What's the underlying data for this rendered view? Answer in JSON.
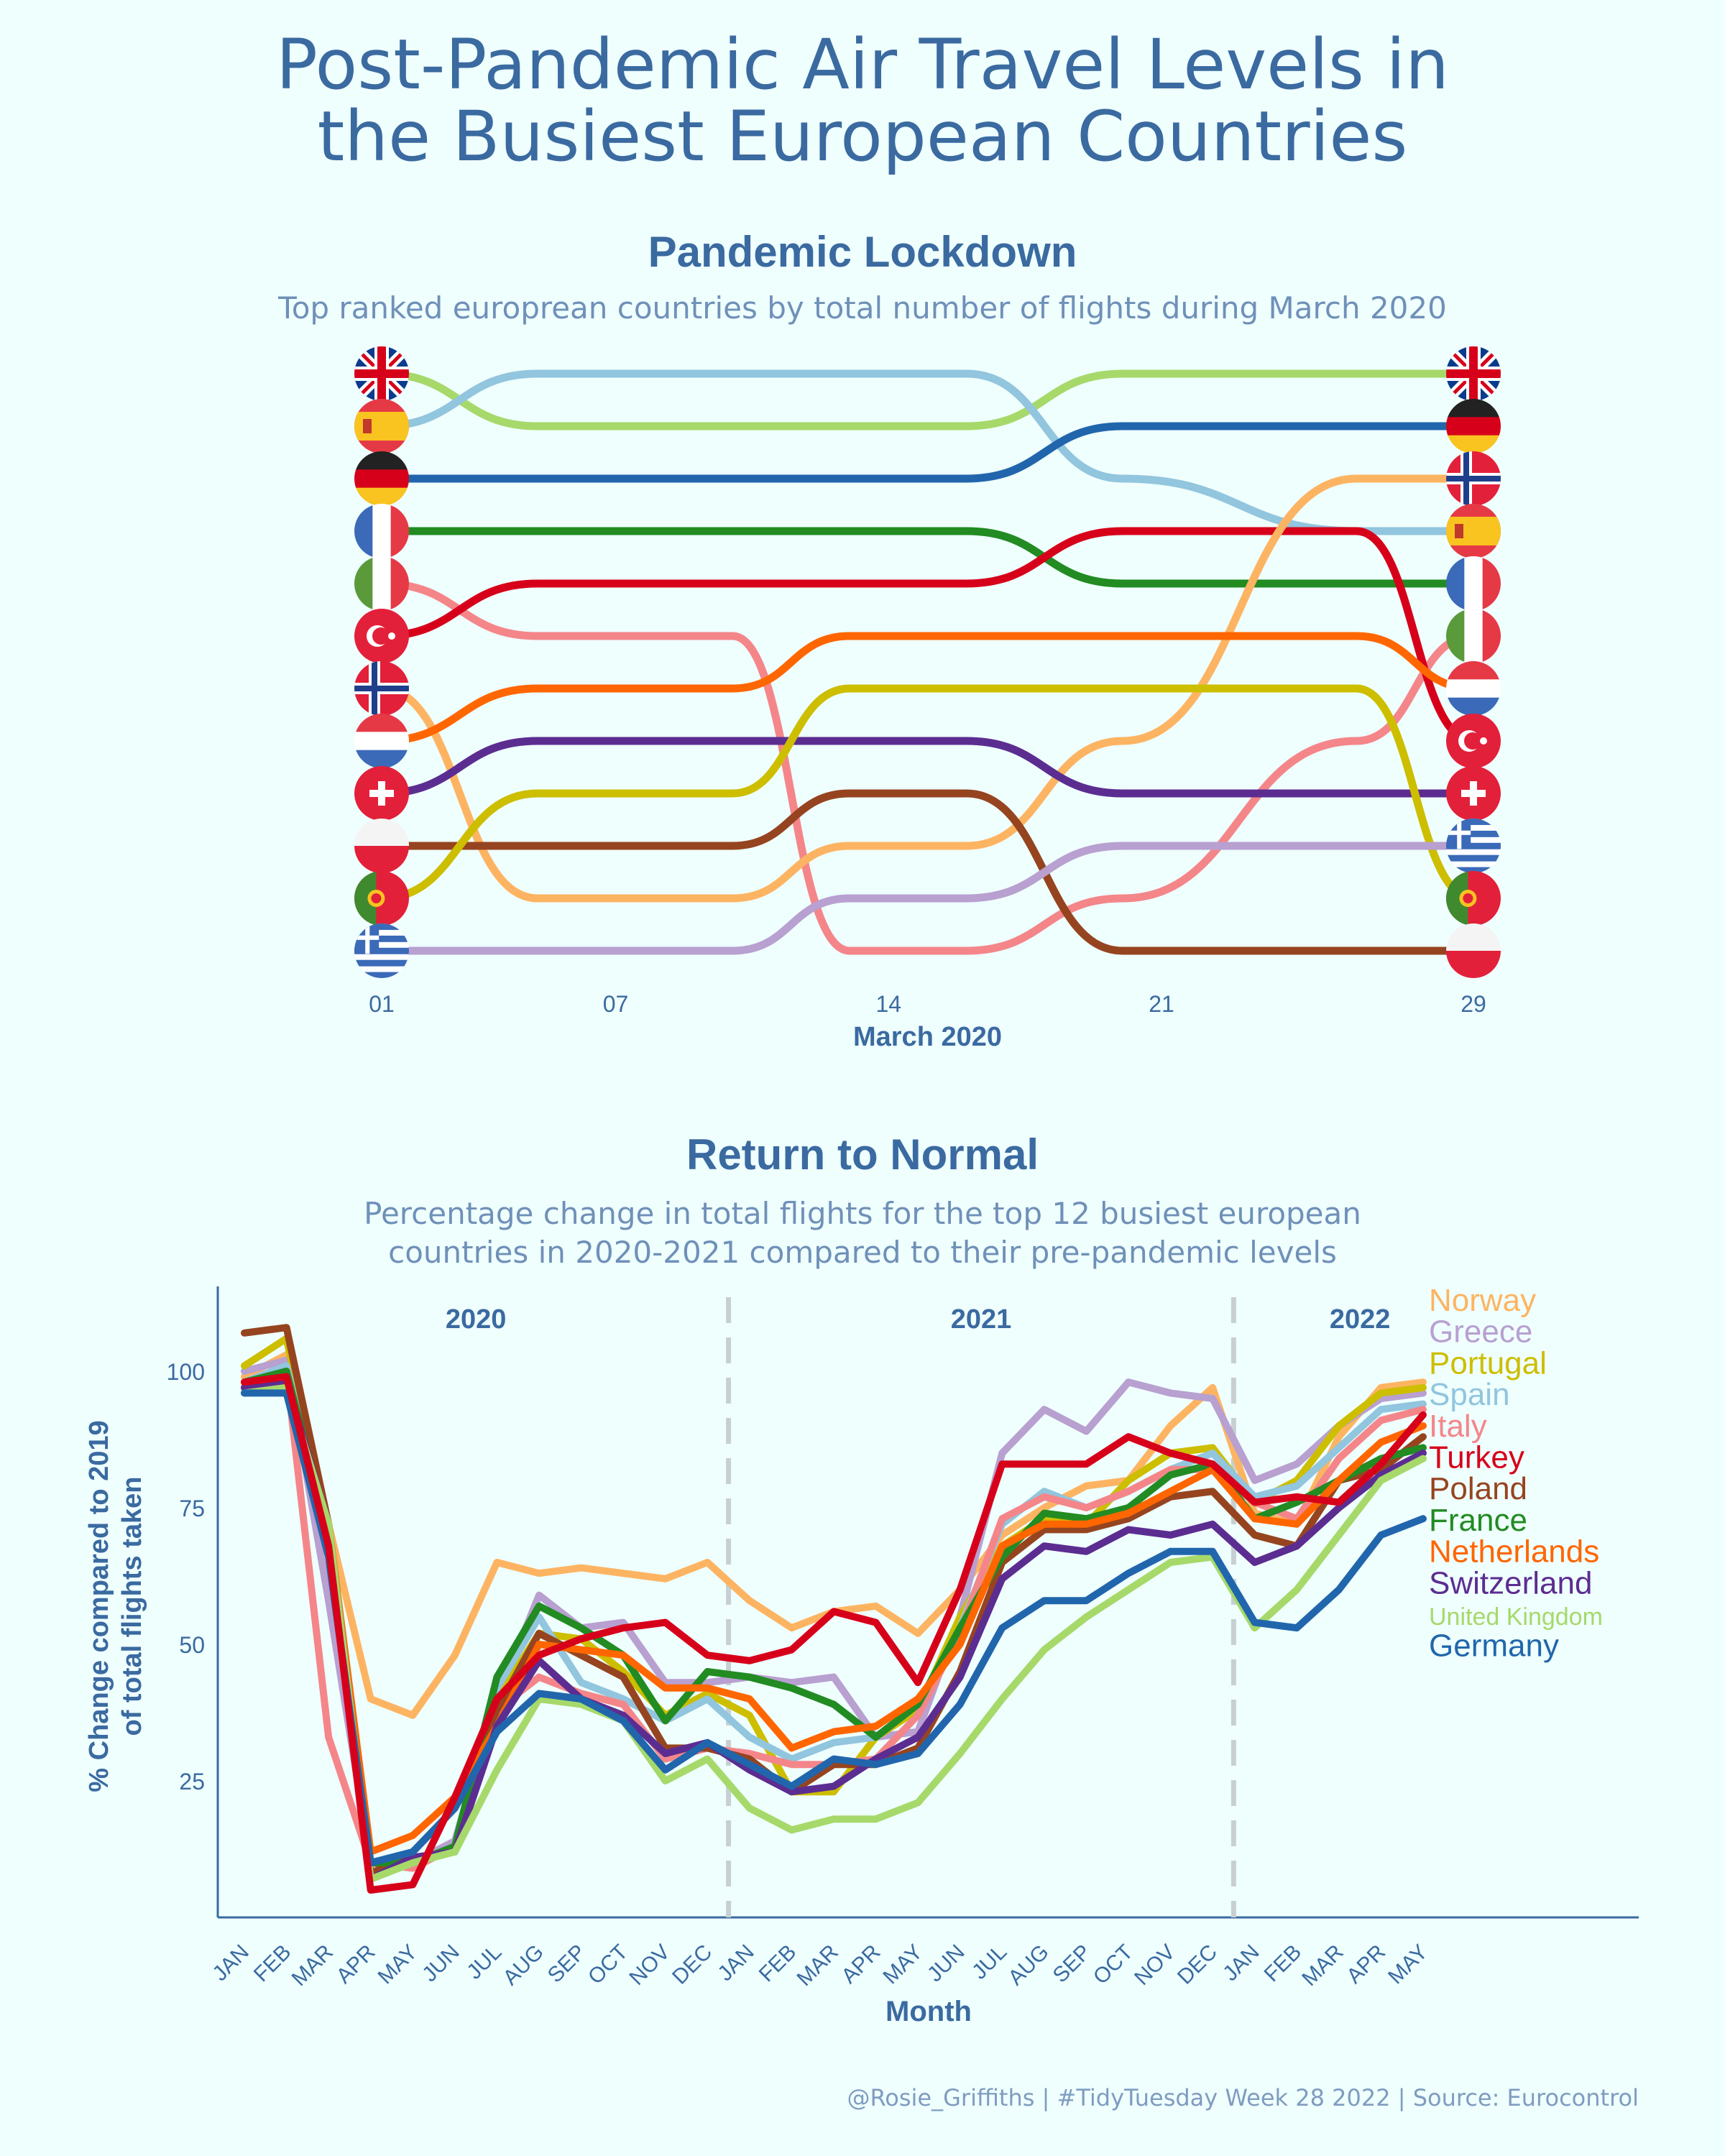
{
  "main_title_line1": "Post-Pandemic Air Travel Levels in",
  "main_title_line2": "the Busiest European Countries",
  "caption": "@Rosie_Griffiths | #TidyTuesday Week 28 2022 | Source: Eurocontrol",
  "colors": {
    "United Kingdom": "#a6d96a",
    "Spain": "#92c5de",
    "Germany": "#2166ac",
    "France": "#228b22",
    "Italy": "#f4868a",
    "Turkey": "#d7001a",
    "Norway": "#fdb462",
    "Netherlands": "#ff6600",
    "Switzerland": "#5c2d91",
    "Poland": "#964420",
    "Portugal": "#cdbe00",
    "Greece": "#b8a0d0"
  },
  "chart_data": [
    {
      "type": "line",
      "chart_kind": "bump",
      "title": "Pandemic Lockdown",
      "subtitle": "Top ranked europrean countries by total number of flights during March 2020",
      "xlabel": "March 2020",
      "x_ticks": [
        "01",
        "07",
        "14",
        "21",
        "29"
      ],
      "rank_checkpoints": [
        1,
        5,
        10,
        13,
        16,
        20,
        26,
        29
      ],
      "series": [
        {
          "name": "United Kingdom",
          "ranks": [
            1,
            2,
            2,
            2,
            2,
            1,
            1,
            1
          ]
        },
        {
          "name": "Spain",
          "ranks": [
            2,
            1,
            1,
            1,
            1,
            3,
            4,
            4
          ]
        },
        {
          "name": "Germany",
          "ranks": [
            3,
            3,
            3,
            3,
            3,
            2,
            2,
            2
          ]
        },
        {
          "name": "France",
          "ranks": [
            4,
            4,
            4,
            4,
            4,
            5,
            5,
            5
          ]
        },
        {
          "name": "Italy",
          "ranks": [
            5,
            6,
            6,
            12,
            12,
            11,
            8,
            6
          ]
        },
        {
          "name": "Turkey",
          "ranks": [
            6,
            5,
            5,
            5,
            5,
            4,
            4,
            8
          ]
        },
        {
          "name": "Norway",
          "ranks": [
            7,
            11,
            11,
            10,
            10,
            8,
            3,
            3
          ]
        },
        {
          "name": "Netherlands",
          "ranks": [
            8,
            7,
            7,
            6,
            6,
            6,
            6,
            7
          ]
        },
        {
          "name": "Switzerland",
          "ranks": [
            9,
            8,
            8,
            8,
            8,
            9,
            9,
            9
          ]
        },
        {
          "name": "Poland",
          "ranks": [
            10,
            10,
            10,
            9,
            9,
            12,
            12,
            12
          ]
        },
        {
          "name": "Portugal",
          "ranks": [
            11,
            9,
            9,
            7,
            7,
            7,
            7,
            11
          ]
        },
        {
          "name": "Greece",
          "ranks": [
            12,
            12,
            12,
            11,
            11,
            10,
            10,
            10
          ]
        }
      ],
      "left_order": [
        "United Kingdom",
        "Spain",
        "Germany",
        "France",
        "Italy",
        "Turkey",
        "Norway",
        "Netherlands",
        "Switzerland",
        "Poland",
        "Portugal",
        "Greece"
      ],
      "right_order": [
        "United Kingdom",
        "Germany",
        "Norway",
        "Spain",
        "France",
        "Italy",
        "Netherlands",
        "Turkey",
        "Switzerland",
        "Greece",
        "Portugal",
        "Poland"
      ]
    },
    {
      "type": "line",
      "title": "Return to Normal",
      "subtitle_line1": "Percentage change in total flights for the top 12 busiest european",
      "subtitle_line2": "countries in 2020-2021 compared to their pre-pandemic levels",
      "xlabel": "Month",
      "ylabel_line1": "% Change compared to 2019",
      "ylabel_line2": "of total flights taken",
      "ylim": [
        0,
        115
      ],
      "y_ticks": [
        25,
        50,
        75,
        100
      ],
      "year_labels": [
        {
          "label": "2020",
          "at": 5.5
        },
        {
          "label": "2021",
          "at": 17.5
        },
        {
          "label": "2022",
          "at": 26.5
        }
      ],
      "year_dividers": [
        11.5,
        23.5
      ],
      "months": [
        "JAN",
        "FEB",
        "MAR",
        "APR",
        "MAY",
        "JUN",
        "JUL",
        "AUG",
        "SEP",
        "OCT",
        "NOV",
        "DEC",
        "JAN",
        "FEB",
        "MAR",
        "APR",
        "MAY",
        "JUN",
        "JUL",
        "AUG",
        "SEP",
        "OCT",
        "NOV",
        "DEC",
        "JAN",
        "FEB",
        "MAR",
        "APR",
        "MAY"
      ],
      "series": [
        {
          "name": "Norway",
          "values": [
            99,
            103,
            72,
            40,
            37,
            48,
            65,
            63,
            64,
            63,
            62,
            65,
            58,
            53,
            56,
            57,
            52,
            60,
            70,
            75,
            79,
            80,
            90,
            97,
            74,
            72,
            88,
            97,
            98
          ]
        },
        {
          "name": "Greece",
          "values": [
            100,
            102,
            58,
            10,
            10,
            14,
            40,
            59,
            53,
            54,
            43,
            43,
            44,
            43,
            44,
            33,
            34,
            55,
            85,
            93,
            89,
            98,
            96,
            95,
            80,
            83,
            90,
            95,
            96
          ]
        },
        {
          "name": "Portugal",
          "values": [
            101,
            106,
            70,
            10,
            9,
            13,
            40,
            52,
            51,
            45,
            37,
            41,
            37,
            23,
            23,
            33,
            38,
            55,
            68,
            73,
            72,
            80,
            85,
            86,
            76,
            80,
            90,
            96,
            97
          ]
        },
        {
          "name": "Spain",
          "values": [
            98,
            101,
            68,
            10,
            10,
            13,
            42,
            55,
            43,
            40,
            36,
            40,
            33,
            29,
            32,
            33,
            39,
            53,
            72,
            78,
            75,
            78,
            82,
            85,
            77,
            79,
            86,
            93,
            94
          ]
        },
        {
          "name": "Italy",
          "values": [
            96,
            100,
            33,
            10,
            9,
            13,
            38,
            44,
            41,
            39,
            29,
            31,
            30,
            28,
            28,
            29,
            37,
            52,
            73,
            77,
            75,
            78,
            82,
            82,
            76,
            73,
            84,
            91,
            93
          ]
        },
        {
          "name": "Turkey",
          "values": [
            98,
            99,
            68,
            5,
            6,
            22,
            40,
            48,
            51,
            53,
            54,
            48,
            47,
            49,
            56,
            54,
            43,
            60,
            83,
            83,
            83,
            88,
            85,
            83,
            76,
            77,
            76,
            83,
            92
          ]
        },
        {
          "name": "Poland",
          "values": [
            107,
            108,
            72,
            8,
            12,
            20,
            38,
            52,
            48,
            44,
            31,
            31,
            29,
            23,
            28,
            28,
            31,
            45,
            65,
            71,
            71,
            73,
            77,
            78,
            70,
            68,
            80,
            82,
            88
          ]
        },
        {
          "name": "France",
          "values": [
            98,
            100,
            70,
            10,
            10,
            13,
            44,
            57,
            53,
            48,
            36,
            45,
            44,
            42,
            39,
            33,
            39,
            53,
            66,
            74,
            73,
            75,
            81,
            83,
            73,
            76,
            80,
            84,
            86
          ]
        },
        {
          "name": "Netherlands",
          "values": [
            97,
            98,
            72,
            12,
            15,
            22,
            35,
            50,
            49,
            48,
            42,
            42,
            40,
            31,
            34,
            35,
            40,
            50,
            68,
            72,
            72,
            74,
            78,
            82,
            73,
            72,
            80,
            87,
            90
          ]
        },
        {
          "name": "Switzerland",
          "values": [
            97,
            98,
            72,
            7,
            11,
            12,
            35,
            47,
            40,
            37,
            30,
            32,
            27,
            23,
            24,
            29,
            33,
            44,
            62,
            68,
            67,
            71,
            70,
            72,
            65,
            68,
            75,
            81,
            85
          ]
        },
        {
          "name": "United Kingdom",
          "values": [
            96,
            97,
            72,
            7,
            10,
            12,
            27,
            40,
            39,
            36,
            25,
            29,
            20,
            16,
            18,
            18,
            21,
            30,
            40,
            49,
            55,
            60,
            65,
            66,
            53,
            60,
            70,
            80,
            84
          ]
        },
        {
          "name": "Germany",
          "values": [
            96,
            96,
            66,
            10,
            12,
            20,
            34,
            41,
            40,
            36,
            27,
            32,
            28,
            24,
            29,
            28,
            30,
            39,
            53,
            58,
            58,
            63,
            67,
            67,
            54,
            53,
            60,
            70,
            73
          ]
        }
      ],
      "legend_order": [
        "Norway",
        "Greece",
        "Portugal",
        "Spain",
        "Italy",
        "Turkey",
        "Poland",
        "France",
        "Netherlands",
        "Switzerland",
        "United Kingdom",
        "Germany"
      ]
    }
  ]
}
